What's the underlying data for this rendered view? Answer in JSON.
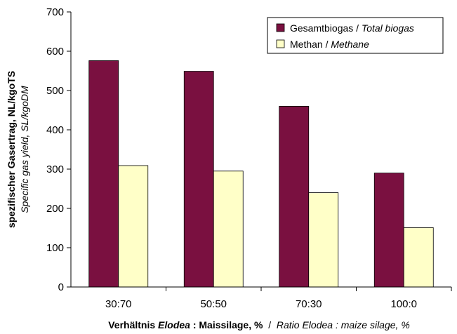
{
  "chart_data": {
    "type": "bar",
    "categories": [
      "30:70",
      "50:50",
      "70:30",
      "100:0"
    ],
    "series": [
      {
        "name_de": "Gesamtbiogas",
        "name_en": "Total biogas",
        "values": [
          576,
          549,
          460,
          290
        ],
        "color": "#7a1040"
      },
      {
        "name_de": "Methan",
        "name_en": "Methane",
        "values": [
          309,
          295,
          240,
          151
        ],
        "color": "#ffffc8"
      }
    ],
    "ylim": [
      0,
      700
    ],
    "yticks": [
      "0",
      "100",
      "200",
      "300",
      "400",
      "500",
      "600",
      "700"
    ],
    "ylabel_de": "spezifischer Gasertrag, NL/kgoTS",
    "ylabel_en": "Specific gas yield, SL/kgoDM",
    "xlabel": {
      "part1": "Verhältnis ",
      "part2": "Elodea",
      "part3": " : Maissilage, %",
      "sep": "  /  ",
      "part4": "Ratio Elodea : maize silage, %"
    },
    "legend_position": "top-right",
    "grid": false
  }
}
